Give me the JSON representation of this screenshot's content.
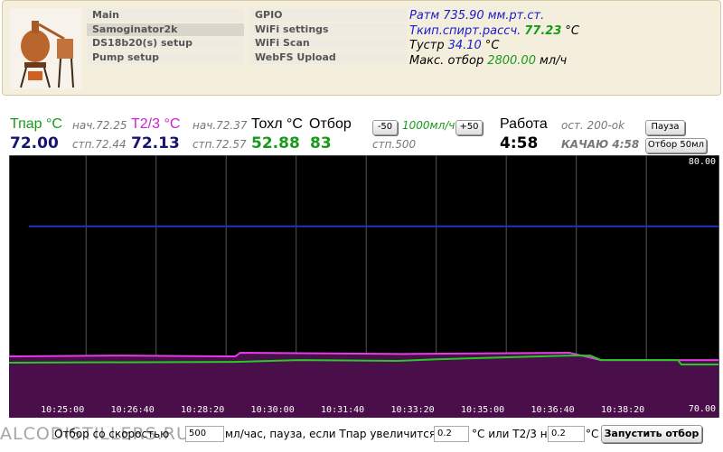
{
  "header": {
    "menu_left": [
      "Main",
      "Samoginator2k",
      "DS18b20(s) setup",
      "Pump setup"
    ],
    "menu_right": [
      "GPIO",
      "WiFi settings",
      "WiFi Scan",
      "WebFS Upload"
    ],
    "readings": [
      {
        "label": "Ратм",
        "value": "735.90",
        "unit": "мм.рт.ст."
      },
      {
        "label": "Ткип.спирт.рассч.",
        "value": "77.23",
        "unit": "°C"
      },
      {
        "label": "Тустр",
        "value": "34.10",
        "unit": "°C"
      },
      {
        "label": "Макс. отбор",
        "value": "2800.00",
        "unit": "мл/ч"
      }
    ]
  },
  "status": {
    "t_par_label": "Тпар °C",
    "t_par_start": "нач.72.25",
    "t_par_value": "72.00",
    "t_par_set": "стп.72.44",
    "t23_label": "T2/3 °C",
    "t23_start": "нач.72.37",
    "t23_value": "72.13",
    "t23_set": "стп.72.57",
    "tohl_label": "Тохл °C",
    "tohl_value": "52.88",
    "otbor_label": "Отбор",
    "otbor_value": "83",
    "btn_minus": "-50",
    "rate": "1000мл/ч",
    "btn_plus": "+50",
    "rate_set": "стп.500",
    "work_label": "Работа",
    "work_time": "4:58",
    "remaining": "ост. 200-ok",
    "state": "КАЧАЮ 4:58",
    "btn_pause": "Пауза",
    "btn_take": "Отбор 50мл"
  },
  "chart": {
    "type": "line",
    "xlim": [
      37390,
      38403
    ],
    "ylim": [
      70,
      80
    ],
    "xticks": [
      {
        "value": 37500,
        "label": "10:25:00"
      },
      {
        "value": 37600,
        "label": "10:26:40"
      },
      {
        "value": 37700,
        "label": "10:28:20"
      },
      {
        "value": 37800,
        "label": "10:30:00"
      },
      {
        "value": 37900,
        "label": "10:31:40"
      },
      {
        "value": 38000,
        "label": "10:33:20"
      },
      {
        "value": 38100,
        "label": "10:35:00"
      },
      {
        "value": 38200,
        "label": "10:36:40"
      },
      {
        "value": 38300,
        "label": "10:38:20"
      }
    ],
    "yticks": [
      {
        "value": 70,
        "label": "70.00"
      },
      {
        "value": 80,
        "label": "80.00"
      }
    ],
    "background": "#000000",
    "grid_color": "#555555",
    "series": [
      {
        "color": "#e040e0",
        "fill": "#4a0f4a",
        "x": [
          37390,
          37550,
          37713,
          37720,
          37950,
          38190,
          38235,
          38403
        ],
        "values": [
          72.31,
          72.34,
          72.31,
          72.45,
          72.4,
          72.45,
          72.17,
          72.17
        ]
      },
      {
        "color": "#22cc22",
        "x": [
          37390,
          37713,
          37803,
          37945,
          38000,
          38190,
          38220,
          38235,
          38345,
          38350,
          38403
        ],
        "values": [
          72.07,
          72.1,
          72.17,
          72.14,
          72.2,
          72.34,
          72.34,
          72.17,
          72.17,
          72.0,
          72.0
        ]
      },
      {
        "color": "#2030c0",
        "x": [
          37418,
          38403
        ],
        "values": [
          77.28,
          77.28
        ]
      }
    ]
  },
  "footer": {
    "watermark": "ALCODISTILLERS.RU",
    "text_start": "Отбор со скоростью",
    "rate_input": "500",
    "text_middle": "мл/час, пауза, если Тпар увеличится на",
    "select_1": "0.2",
    "text_or": "°C или T2/3 на",
    "select_2": "0.2",
    "text_end": "°C",
    "button": "Запустить отбор"
  }
}
